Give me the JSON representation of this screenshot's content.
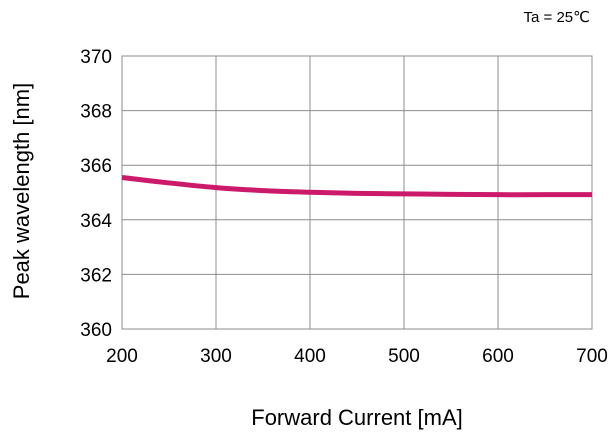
{
  "chart_data": {
    "type": "line",
    "annotation": "Ta = 25℃",
    "xlabel": "Forward Current [mA]",
    "ylabel": "Peak wavelength [nm]",
    "xlim": [
      200,
      700
    ],
    "ylim": [
      360,
      370
    ],
    "x_ticks": [
      "200",
      "300",
      "400",
      "500",
      "600",
      "700"
    ],
    "y_ticks": [
      "360",
      "362",
      "364",
      "366",
      "368",
      "370"
    ],
    "grid": true,
    "series": [
      {
        "color": "#cc1a6b",
        "x": [
          200,
          250,
          300,
          350,
          400,
          450,
          500,
          550,
          600,
          650,
          700
        ],
        "y": [
          365.55,
          365.35,
          365.18,
          365.07,
          365.01,
          364.97,
          364.95,
          364.93,
          364.92,
          364.92,
          364.92
        ]
      }
    ]
  }
}
